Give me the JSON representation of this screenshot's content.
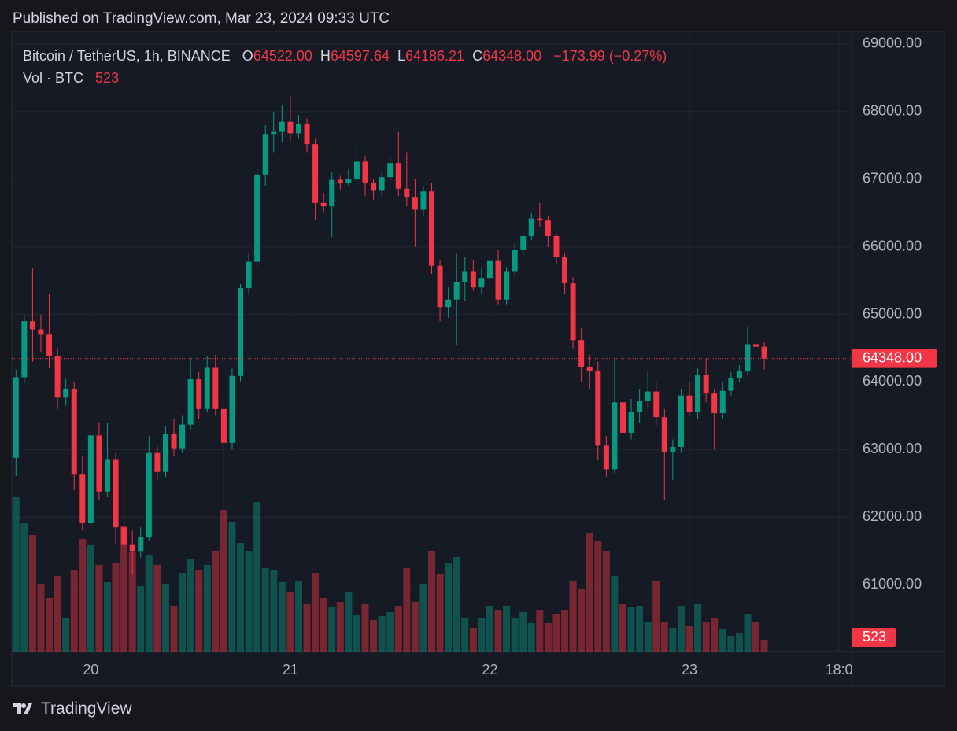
{
  "published": "Published on TradingView.com, Mar 23, 2024 09:33 UTC",
  "brand": "TradingView",
  "chart_data": {
    "type": "candlestick",
    "title": "Bitcoin / TetherUS, 1h, BINANCE",
    "legend": [
      {
        "label": "O",
        "value": "64522.00"
      },
      {
        "label": "H",
        "value": "64597.64"
      },
      {
        "label": "L",
        "value": "64186.21"
      },
      {
        "label": "C",
        "value": "64348.00"
      }
    ],
    "change": "−173.99 (−0.27%)",
    "volume_title": "Vol · BTC",
    "volume_last": "523",
    "last_price": {
      "value": 64348,
      "label": "64348.00"
    },
    "up_color": "#089981",
    "down_color": "#f23645",
    "xlim": [
      -0.5,
      100.5
    ],
    "xticks": [
      {
        "value": 9,
        "label": "20"
      },
      {
        "value": 33,
        "label": "21"
      },
      {
        "value": 57,
        "label": "22"
      },
      {
        "value": 81,
        "label": "23"
      },
      {
        "value": 99,
        "label": "18:0"
      }
    ],
    "ylim": [
      60013,
      69186
    ],
    "yticks": [
      {
        "value": 61000,
        "label": "61000.00"
      },
      {
        "value": 62000,
        "label": "62000.00"
      },
      {
        "value": 63000,
        "label": "63000.00"
      },
      {
        "value": 64000,
        "label": "64000.00"
      },
      {
        "value": 65000,
        "label": "65000.00"
      },
      {
        "value": 66000,
        "label": "66000.00"
      },
      {
        "value": 67000,
        "label": "67000.00"
      },
      {
        "value": 68000,
        "label": "68000.00"
      },
      {
        "value": 69000,
        "label": "69000.00"
      }
    ],
    "grid": true,
    "open": [
      62880,
      64070,
      64900,
      64780,
      64700,
      64390,
      63770,
      63900,
      62630,
      61910,
      63210,
      62380,
      62860,
      61850,
      61600,
      61500,
      61700,
      62950,
      62670,
      63230,
      63020,
      63370,
      64040,
      63600,
      64210,
      63600,
      63100,
      64090,
      65390,
      65780,
      67070,
      67670,
      67700,
      67850,
      67680,
      67820,
      67520,
      66650,
      66600,
      66990,
      66950,
      67000,
      67260,
      66950,
      66830,
      67030,
      67240,
      66860,
      66740,
      66550,
      66820,
      65720,
      65110,
      65220,
      65480,
      65630,
      65400,
      65540,
      65790,
      65220,
      65630,
      65950,
      66160,
      66420,
      66390,
      66160,
      65850,
      65460,
      64620,
      64220,
      64170,
      63060,
      62710,
      63700,
      63250,
      63560,
      63720,
      63860,
      63480,
      62960,
      63040,
      63800,
      63560,
      64100,
      63830,
      63540,
      63870,
      64060,
      64160,
      64560,
      64522
    ],
    "high": [
      64180,
      64990,
      65680,
      65000,
      65300,
      64500,
      64050,
      64000,
      62900,
      63300,
      63400,
      63400,
      62950,
      62500,
      61800,
      61850,
      63200,
      63050,
      63350,
      63450,
      63500,
      64350,
      64150,
      64380,
      64400,
      63750,
      64200,
      65450,
      65900,
      67150,
      67800,
      68000,
      68100,
      68230,
      67950,
      67900,
      67600,
      66800,
      67100,
      67050,
      67150,
      67550,
      67350,
      67000,
      67100,
      67350,
      67700,
      67400,
      67000,
      66900,
      66950,
      65800,
      65400,
      65900,
      65850,
      65800,
      65700,
      65900,
      65950,
      65700,
      66050,
      66200,
      66500,
      66650,
      66450,
      66200,
      65900,
      65550,
      64800,
      64400,
      64300,
      63200,
      64350,
      63950,
      63750,
      63900,
      64150,
      64000,
      63600,
      63150,
      63900,
      64000,
      64200,
      64350,
      63900,
      64000,
      64150,
      64250,
      64820,
      64850,
      64597.64
    ],
    "low": [
      62610,
      63980,
      64300,
      64450,
      64200,
      63600,
      63650,
      62400,
      61800,
      61850,
      62250,
      62300,
      61600,
      61450,
      61150,
      61400,
      61650,
      62550,
      62600,
      62900,
      62950,
      63300,
      63450,
      63550,
      63500,
      62100,
      63000,
      64000,
      65300,
      65700,
      66900,
      67400,
      67550,
      67550,
      67600,
      67400,
      66400,
      66500,
      66150,
      66850,
      66900,
      66900,
      66750,
      66700,
      66750,
      66950,
      66750,
      66600,
      66000,
      66450,
      65600,
      64900,
      64950,
      64550,
      65200,
      65350,
      65300,
      65400,
      65150,
      65150,
      65550,
      65850,
      66100,
      66300,
      66000,
      65750,
      65300,
      64500,
      64000,
      63900,
      62850,
      62600,
      62650,
      63100,
      63150,
      63400,
      63600,
      63350,
      62260,
      62550,
      62950,
      63500,
      63450,
      63700,
      63000,
      63450,
      63800,
      64000,
      64100,
      64300,
      64186.21
    ],
    "close": [
      64070,
      64900,
      64780,
      64700,
      64390,
      63770,
      63900,
      62630,
      61910,
      63210,
      62380,
      62860,
      61850,
      61600,
      61500,
      61700,
      62950,
      62670,
      63230,
      63020,
      63370,
      64040,
      63600,
      64210,
      63600,
      63100,
      64090,
      65390,
      65780,
      67070,
      67670,
      67700,
      67850,
      67680,
      67820,
      67520,
      66650,
      66600,
      66990,
      66950,
      67000,
      67260,
      66950,
      66830,
      67030,
      67240,
      66860,
      66740,
      66550,
      66820,
      65720,
      65110,
      65220,
      65480,
      65630,
      65400,
      65540,
      65790,
      65220,
      65630,
      65950,
      66160,
      66420,
      66390,
      66160,
      65850,
      65460,
      64620,
      64220,
      64170,
      63060,
      62710,
      63700,
      63250,
      63560,
      63720,
      63860,
      63480,
      62960,
      63040,
      63800,
      63560,
      64100,
      63830,
      63540,
      63870,
      64060,
      64160,
      64560,
      64522,
      64348
    ],
    "volume": [
      6860,
      5705,
      5180,
      3010,
      2380,
      3360,
      1505,
      3605,
      5005,
      4760,
      3850,
      3080,
      3955,
      5600,
      4410,
      2905,
      4305,
      3850,
      3010,
      2030,
      3500,
      4130,
      3605,
      3850,
      4480,
      6300,
      5775,
      4830,
      4480,
      6650,
      3710,
      3605,
      3080,
      2660,
      3150,
      2100,
      3500,
      2380,
      1960,
      2205,
      2660,
      1610,
      2100,
      1400,
      1575,
      1750,
      2030,
      3710,
      2205,
      3010,
      4480,
      3430,
      3955,
      4200,
      1505,
      1050,
      1505,
      2030,
      1855,
      2030,
      1505,
      1750,
      1260,
      1855,
      1260,
      1680,
      1855,
      3150,
      2800,
      5250,
      4900,
      4480,
      3360,
      2100,
      1960,
      2030,
      1330,
      3150,
      1330,
      1050,
      2030,
      1155,
      2100,
      1330,
      1470,
      980,
      700,
      805,
      1680,
      1330,
      523
    ]
  }
}
